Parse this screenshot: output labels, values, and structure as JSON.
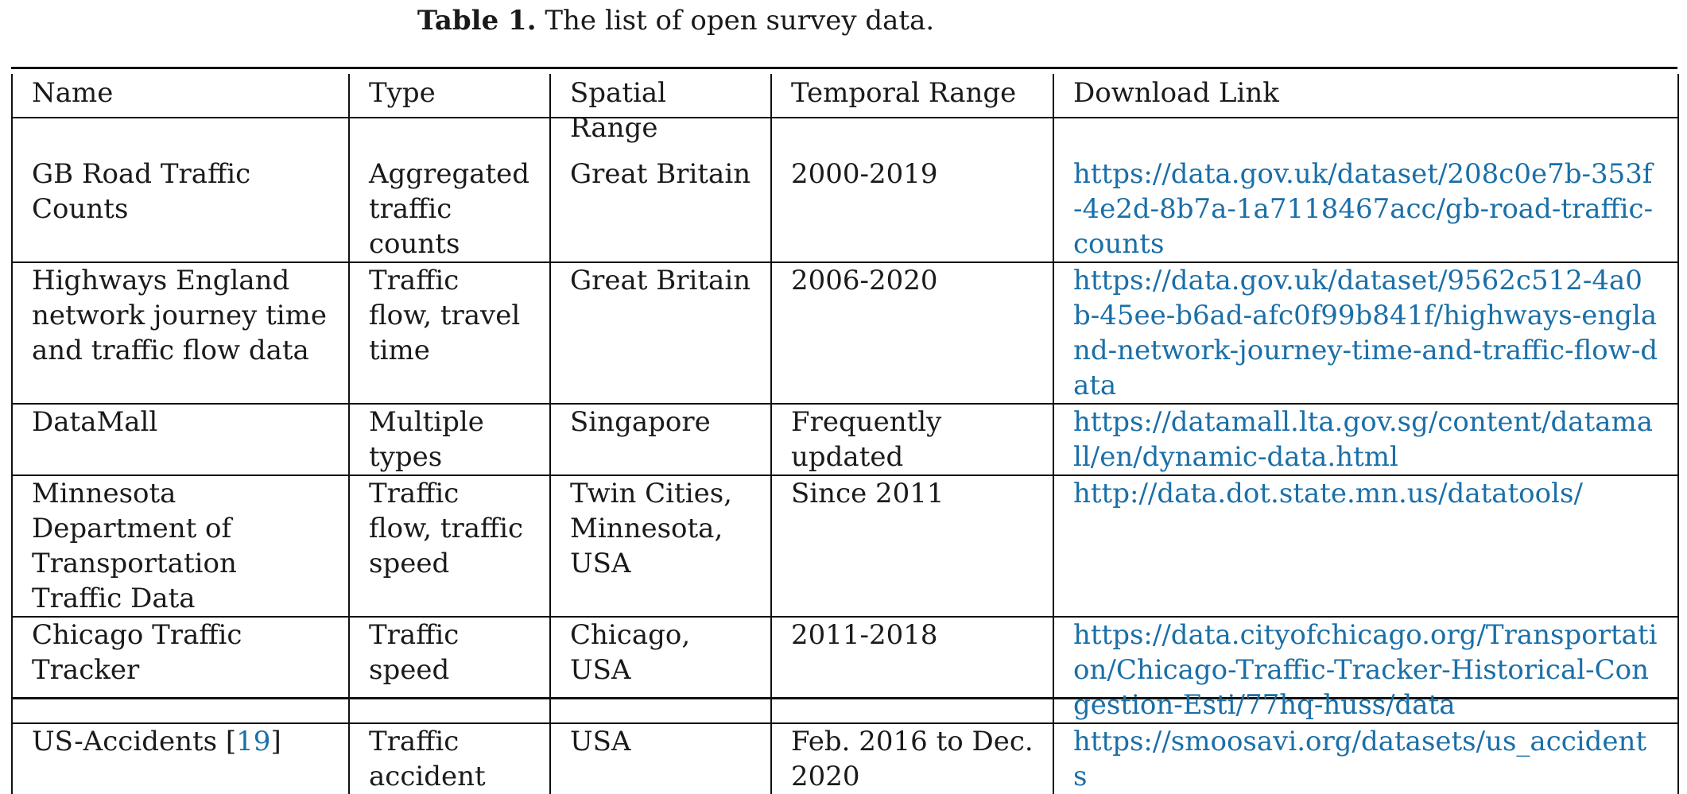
{
  "caption": {
    "label": "Table 1.",
    "text": " The list of open survey data."
  },
  "columns": [
    "Name",
    "Type",
    "Spatial Range",
    "Temporal Range",
    "Download Link"
  ],
  "rows": [
    {
      "name": "GB Road Traffic Counts",
      "type": "Aggregated traffic counts",
      "spatial": "Great Britain",
      "temporal": "2000-2019",
      "link": "https://data.gov.uk/dataset/208c0e7b-353f-4e2d-8b7a-1a7118467acc/gb-road-traffic-counts"
    },
    {
      "name": "Highways England network journey time and traffic flow data",
      "type": "Traffic flow, travel time",
      "spatial": "Great Britain",
      "temporal": "2006-2020",
      "link": "https://data.gov.uk/dataset/9562c512-4a0b-45ee-b6ad-afc0f99b841f/highways-england-network-journey-time-and-traffic-flow-data"
    },
    {
      "name": "DataMall",
      "type": "Multiple types",
      "spatial": "Singapore",
      "temporal": "Frequently updated",
      "link": "https://datamall.lta.gov.sg/content/datamall/en/dynamic-data.html"
    },
    {
      "name": "Minnesota Department of Transportation Traffic Data",
      "type": "Traffic flow, traffic speed",
      "spatial": "Twin Cities, Minnesota, USA",
      "temporal": "Since 2011",
      "link": "http://data.dot.state.mn.us/datatools/"
    },
    {
      "name": "Chicago Traffic Tracker",
      "type": "Traffic speed",
      "spatial": "Chicago, USA",
      "temporal": "2011-2018",
      "link": "https://data.cityofchicago.org/Transportation/Chicago-Traffic-Tracker-Historical-Congestion-Esti/77hq-huss/data"
    },
    {
      "name": "US-Accidents",
      "name_ref": "19",
      "type": "Traffic accident",
      "spatial": "USA",
      "temporal": "Feb. 2016 to Dec. 2020",
      "link": "https://smoosavi.org/datasets/us_accidents"
    }
  ],
  "colors": {
    "link": "#1a6fa8",
    "text": "#1a1a1a",
    "rule": "#111111"
  }
}
